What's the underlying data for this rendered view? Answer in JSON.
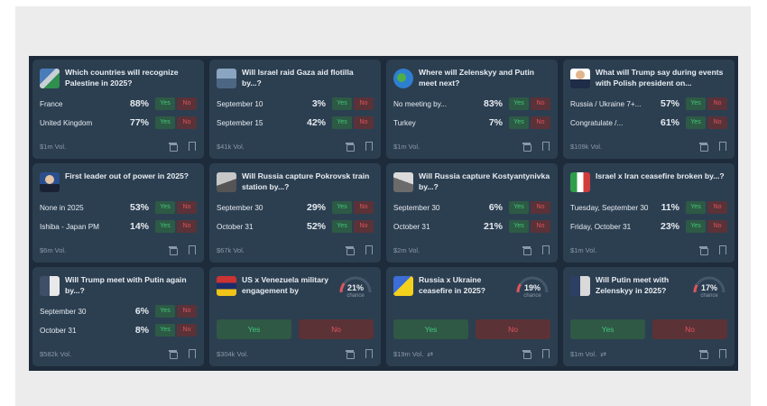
{
  "cards": [
    {
      "title": "Which countries will recognize Palestine in 2025?",
      "thumb": "palestine-thumb",
      "rows": [
        {
          "label": "France",
          "pct": "88%"
        },
        {
          "label": "United Kingdom",
          "pct": "77%"
        }
      ],
      "vol": "$1m Vol."
    },
    {
      "title": "Will Israel raid Gaza aid flotilla by...?",
      "thumb": "gaza-thumb",
      "rows": [
        {
          "label": "September 10",
          "pct": "3%"
        },
        {
          "label": "September 15",
          "pct": "42%"
        }
      ],
      "vol": "$41k Vol."
    },
    {
      "title": "Where will Zelenskyy and Putin meet next?",
      "thumb": "globe-thumb",
      "rows": [
        {
          "label": "No meeting by...",
          "pct": "83%"
        },
        {
          "label": "Turkey",
          "pct": "7%"
        }
      ],
      "vol": "$1m Vol."
    },
    {
      "title": "What will Trump say during events with Polish president on...",
      "thumb": "trump-thumb",
      "rows": [
        {
          "label": "Russia / Ukraine 7+...",
          "pct": "57%"
        },
        {
          "label": "Congratulate /...",
          "pct": "61%"
        }
      ],
      "vol": "$109k Vol."
    },
    {
      "title": "First leader out of power in 2025?",
      "thumb": "leader-thumb",
      "rows": [
        {
          "label": "None in 2025",
          "pct": "53%"
        },
        {
          "label": "Ishiba - Japan PM",
          "pct": "14%"
        }
      ],
      "vol": "$6m Vol."
    },
    {
      "title": "Will Russia capture Pokrovsk train station by...?",
      "thumb": "pokrovsk-thumb",
      "rows": [
        {
          "label": "September 30",
          "pct": "29%"
        },
        {
          "label": "October 31",
          "pct": "52%"
        }
      ],
      "vol": "$67k Vol."
    },
    {
      "title": "Will Russia capture Kostyantynivka by...?",
      "thumb": "kostyantynivka-thumb",
      "rows": [
        {
          "label": "September 30",
          "pct": "6%"
        },
        {
          "label": "October 31",
          "pct": "21%"
        }
      ],
      "vol": "$2m Vol."
    },
    {
      "title": "Israel x Iran ceasefire broken by...?",
      "thumb": "israel-iran-thumb",
      "rows": [
        {
          "label": "Tuesday, September 30",
          "pct": "11%"
        },
        {
          "label": "Friday, October 31",
          "pct": "23%"
        }
      ],
      "vol": "$1m Vol."
    },
    {
      "title": "Will Trump meet with Putin again by...?",
      "thumb": "trump-putin-thumb",
      "rows": [
        {
          "label": "September 30",
          "pct": "6%"
        },
        {
          "label": "October 31",
          "pct": "8%"
        }
      ],
      "vol": "$582k Vol."
    }
  ],
  "binary_cards": [
    {
      "title": "US x Venezuela military engagement by Octobe...",
      "thumb": "venezuela-thumb",
      "chance": "21%",
      "chance_value": 21,
      "vol": "$304k Vol.",
      "repeat": false
    },
    {
      "title": "Russia x Ukraine ceasefire in 2025?",
      "thumb": "ukraine-thumb",
      "chance": "19%",
      "chance_value": 19,
      "vol": "$19m Vol.",
      "repeat": true
    },
    {
      "title": "Will Putin meet with Zelenskyy in 2025?",
      "thumb": "putin-zelenskyy-thumb",
      "chance": "17%",
      "chance_value": 17,
      "vol": "$1m Vol.",
      "repeat": true
    }
  ],
  "labels": {
    "yes": "Yes",
    "no": "No",
    "chance": "chance",
    "repeat_icon": "⇄"
  },
  "colors": {
    "yes": "#42c77a",
    "no": "#e0545c",
    "card": "#2c3f51",
    "panel": "#1d2b3a"
  },
  "icons": [
    "gift-icon",
    "bookmark-icon",
    "repeat-icon"
  ]
}
